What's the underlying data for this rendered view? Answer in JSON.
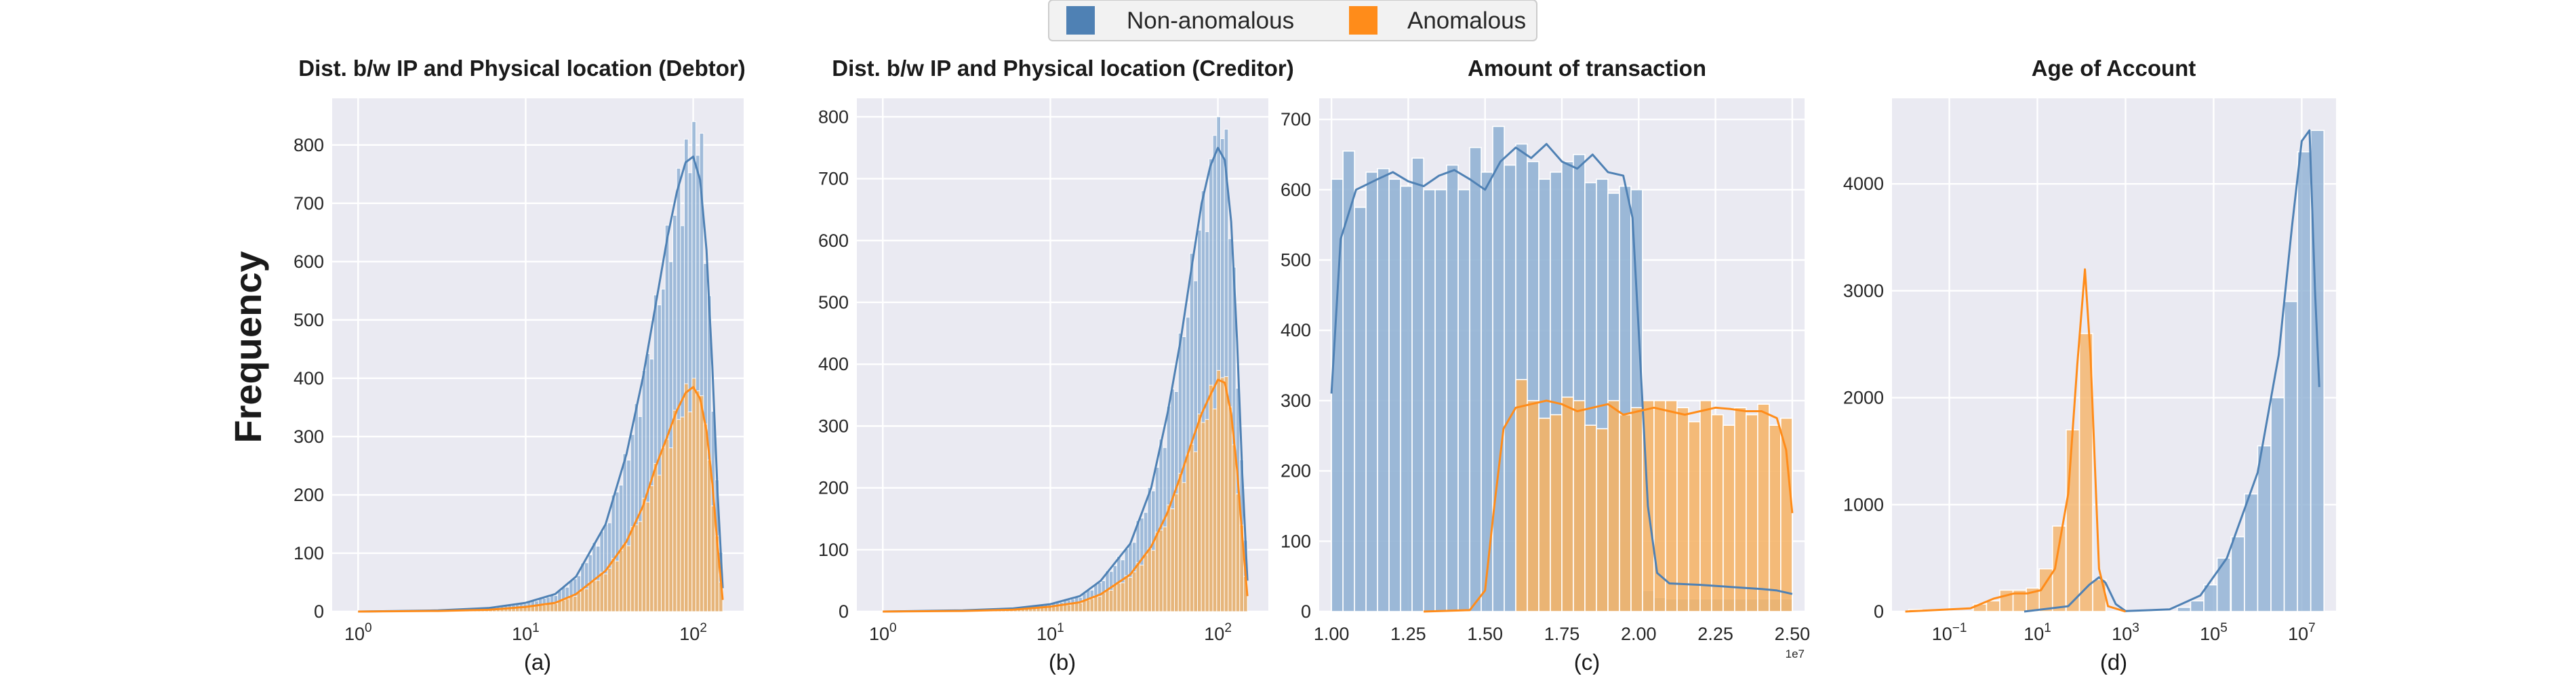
{
  "figure": {
    "ylabel": "Frequency",
    "legend": {
      "items": [
        {
          "label": "Non-anomalous",
          "color": "#4f81b4"
        },
        {
          "label": "Anomalous",
          "color": "#ff8c1a"
        }
      ]
    }
  },
  "chart_data": [
    {
      "type": "histogram",
      "title": "Dist. b/w IP and Physical location (Debtor)",
      "sublabel": "(a)",
      "xscale": "log",
      "xlim": [
        0.7,
        200
      ],
      "ylim": [
        0,
        880
      ],
      "yticks": [
        0,
        100,
        200,
        300,
        400,
        500,
        600,
        700,
        800
      ],
      "xticks": [
        {
          "value": 1,
          "base": "10",
          "exp": "0"
        },
        {
          "value": 10,
          "base": "10",
          "exp": "1"
        },
        {
          "value": 100,
          "base": "10",
          "exp": "2"
        }
      ],
      "grid": true,
      "series": [
        {
          "name": "Non-anomalous",
          "kde": [
            [
              1,
              0
            ],
            [
              3,
              2
            ],
            [
              6,
              6
            ],
            [
              10,
              15
            ],
            [
              15,
              30
            ],
            [
              20,
              60
            ],
            [
              30,
              150
            ],
            [
              40,
              270
            ],
            [
              50,
              400
            ],
            [
              60,
              530
            ],
            [
              70,
              640
            ],
            [
              80,
              720
            ],
            [
              90,
              770
            ],
            [
              100,
              780
            ],
            [
              110,
              740
            ],
            [
              120,
              620
            ],
            [
              130,
              420
            ],
            [
              140,
              200
            ],
            [
              150,
              40
            ]
          ],
          "peaks": [
            [
              100,
              840
            ],
            [
              90,
              810
            ],
            [
              110,
              820
            ],
            [
              80,
              760
            ]
          ]
        },
        {
          "name": "Anomalous",
          "kde": [
            [
              1,
              0
            ],
            [
              3,
              1
            ],
            [
              6,
              3
            ],
            [
              10,
              8
            ],
            [
              15,
              15
            ],
            [
              20,
              30
            ],
            [
              30,
              70
            ],
            [
              40,
              120
            ],
            [
              50,
              180
            ],
            [
              60,
              250
            ],
            [
              70,
              300
            ],
            [
              80,
              345
            ],
            [
              90,
              375
            ],
            [
              100,
              385
            ],
            [
              110,
              365
            ],
            [
              120,
              310
            ],
            [
              130,
              220
            ],
            [
              140,
              110
            ],
            [
              150,
              20
            ]
          ],
          "peaks": [
            [
              100,
              400
            ],
            [
              110,
              370
            ]
          ]
        }
      ]
    },
    {
      "type": "histogram",
      "title": "Dist. b/w IP and Physical location (Creditor)",
      "sublabel": "(b)",
      "xscale": "log",
      "xlim": [
        0.7,
        200
      ],
      "ylim": [
        0,
        830
      ],
      "yticks": [
        0,
        100,
        200,
        300,
        400,
        500,
        600,
        700,
        800
      ],
      "xticks": [
        {
          "value": 1,
          "base": "10",
          "exp": "0"
        },
        {
          "value": 10,
          "base": "10",
          "exp": "1"
        },
        {
          "value": 100,
          "base": "10",
          "exp": "2"
        }
      ],
      "grid": true,
      "series": [
        {
          "name": "Non-anomalous",
          "kde": [
            [
              1,
              0
            ],
            [
              3,
              2
            ],
            [
              6,
              5
            ],
            [
              10,
              12
            ],
            [
              15,
              25
            ],
            [
              20,
              50
            ],
            [
              30,
              110
            ],
            [
              40,
              200
            ],
            [
              50,
              320
            ],
            [
              60,
              440
            ],
            [
              70,
              560
            ],
            [
              80,
              660
            ],
            [
              90,
              720
            ],
            [
              100,
              750
            ],
            [
              110,
              730
            ],
            [
              120,
              630
            ],
            [
              130,
              440
            ],
            [
              140,
              220
            ],
            [
              150,
              50
            ]
          ],
          "peaks": [
            [
              100,
              800
            ],
            [
              110,
              780
            ],
            [
              95,
              770
            ]
          ]
        },
        {
          "name": "Anomalous",
          "kde": [
            [
              1,
              0
            ],
            [
              3,
              1
            ],
            [
              6,
              3
            ],
            [
              10,
              8
            ],
            [
              15,
              15
            ],
            [
              20,
              28
            ],
            [
              30,
              60
            ],
            [
              40,
              105
            ],
            [
              50,
              160
            ],
            [
              60,
              220
            ],
            [
              70,
              275
            ],
            [
              80,
              320
            ],
            [
              90,
              350
            ],
            [
              100,
              375
            ],
            [
              110,
              370
            ],
            [
              120,
              320
            ],
            [
              130,
              230
            ],
            [
              140,
              120
            ],
            [
              150,
              25
            ]
          ],
          "peaks": [
            [
              100,
              390
            ],
            [
              110,
              380
            ]
          ]
        }
      ]
    },
    {
      "type": "histogram",
      "title": "Amount of transaction",
      "sublabel": "(c)",
      "xscale": "linear",
      "xlim": [
        0.96,
        2.54
      ],
      "ylim": [
        0,
        730
      ],
      "offset_text": "1e7",
      "yticks": [
        0,
        100,
        200,
        300,
        400,
        500,
        600,
        700
      ],
      "xticks": [
        {
          "value": 1.0,
          "label": "1.00"
        },
        {
          "value": 1.25,
          "label": "1.25"
        },
        {
          "value": 1.5,
          "label": "1.50"
        },
        {
          "value": 1.75,
          "label": "1.75"
        },
        {
          "value": 2.0,
          "label": "2.00"
        },
        {
          "value": 2.25,
          "label": "2.25"
        },
        {
          "value": 2.5,
          "label": "2.50"
        }
      ],
      "grid": true,
      "bins_start": 1.0,
      "bin_width": 0.0375,
      "series": [
        {
          "name": "Non-anomalous",
          "values": [
            615,
            655,
            575,
            625,
            630,
            615,
            605,
            645,
            600,
            600,
            635,
            600,
            660,
            625,
            690,
            635,
            665,
            640,
            615,
            625,
            640,
            650,
            610,
            615,
            595,
            605,
            600,
            30,
            20,
            18,
            18,
            18,
            18,
            18,
            18,
            18,
            18,
            18,
            18,
            18
          ],
          "kde": [
            [
              1.0,
              310
            ],
            [
              1.03,
              530
            ],
            [
              1.08,
              600
            ],
            [
              1.15,
              615
            ],
            [
              1.2,
              625
            ],
            [
              1.25,
              612
            ],
            [
              1.3,
              605
            ],
            [
              1.35,
              620
            ],
            [
              1.4,
              628
            ],
            [
              1.45,
              615
            ],
            [
              1.5,
              600
            ],
            [
              1.55,
              640
            ],
            [
              1.6,
              660
            ],
            [
              1.65,
              645
            ],
            [
              1.7,
              665
            ],
            [
              1.75,
              640
            ],
            [
              1.8,
              630
            ],
            [
              1.85,
              650
            ],
            [
              1.9,
              625
            ],
            [
              1.95,
              620
            ],
            [
              1.98,
              560
            ],
            [
              2.0,
              400
            ],
            [
              2.03,
              150
            ],
            [
              2.06,
              55
            ],
            [
              2.1,
              40
            ],
            [
              2.2,
              38
            ],
            [
              2.3,
              35
            ],
            [
              2.4,
              32
            ],
            [
              2.45,
              30
            ],
            [
              2.5,
              25
            ]
          ]
        },
        {
          "name": "Anomalous",
          "values": [
            0,
            0,
            0,
            0,
            0,
            0,
            0,
            0,
            0,
            0,
            0,
            0,
            0,
            0,
            0,
            0,
            330,
            300,
            275,
            280,
            305,
            300,
            265,
            260,
            300,
            280,
            290,
            300,
            300,
            300,
            290,
            270,
            300,
            280,
            265,
            290,
            280,
            295,
            265,
            275
          ],
          "kde": [
            [
              1.3,
              0
            ],
            [
              1.45,
              2
            ],
            [
              1.5,
              30
            ],
            [
              1.53,
              150
            ],
            [
              1.56,
              260
            ],
            [
              1.6,
              290
            ],
            [
              1.65,
              295
            ],
            [
              1.7,
              300
            ],
            [
              1.75,
              295
            ],
            [
              1.8,
              285
            ],
            [
              1.85,
              290
            ],
            [
              1.9,
              295
            ],
            [
              1.95,
              280
            ],
            [
              2.0,
              285
            ],
            [
              2.05,
              290
            ],
            [
              2.1,
              285
            ],
            [
              2.15,
              280
            ],
            [
              2.2,
              285
            ],
            [
              2.25,
              290
            ],
            [
              2.3,
              288
            ],
            [
              2.35,
              285
            ],
            [
              2.4,
              285
            ],
            [
              2.45,
              275
            ],
            [
              2.48,
              230
            ],
            [
              2.5,
              140
            ]
          ]
        }
      ]
    },
    {
      "type": "histogram",
      "title": "Age of Account",
      "sublabel": "(d)",
      "xscale": "log",
      "xlim": [
        0.005,
        60000000
      ],
      "ylim": [
        0,
        4800
      ],
      "yticks": [
        0,
        1000,
        2000,
        3000,
        4000
      ],
      "xticks": [
        {
          "value": 0.1,
          "base": "10",
          "exp": "−1"
        },
        {
          "value": 10,
          "base": "10",
          "exp": "1"
        },
        {
          "value": 1000,
          "base": "10",
          "exp": "3"
        },
        {
          "value": 100000,
          "base": "10",
          "exp": "5"
        },
        {
          "value": 10000000,
          "base": "10",
          "exp": "7"
        }
      ],
      "grid": true,
      "series": [
        {
          "name": "Non-anomalous",
          "bars": [
            [
              15000,
              40
            ],
            [
              30000,
              100
            ],
            [
              60000,
              250
            ],
            [
              120000,
              500
            ],
            [
              250000,
              700
            ],
            [
              500000,
              1100
            ],
            [
              1000000,
              1550
            ],
            [
              2000000,
              2000
            ],
            [
              4000000,
              2900
            ],
            [
              8000000,
              4300
            ],
            [
              16000000,
              4500
            ]
          ],
          "kde": [
            [
              5,
              0
            ],
            [
              50,
              50
            ],
            [
              150,
              250
            ],
            [
              250,
              320
            ],
            [
              350,
              270
            ],
            [
              600,
              70
            ],
            [
              1000,
              5
            ],
            [
              10000,
              20
            ],
            [
              50000,
              150
            ],
            [
              200000,
              500
            ],
            [
              1000000,
              1300
            ],
            [
              3000000,
              2400
            ],
            [
              6000000,
              3600
            ],
            [
              10000000,
              4400
            ],
            [
              15000000,
              4500
            ],
            [
              20000000,
              3000
            ],
            [
              25000000,
              2100
            ]
          ]
        },
        {
          "name": "Anomalous",
          "bars": [
            [
              0.012,
              20
            ],
            [
              0.35,
              70
            ],
            [
              0.7,
              100
            ],
            [
              1.4,
              200
            ],
            [
              2.8,
              200
            ],
            [
              5.6,
              220
            ],
            [
              11,
              400
            ],
            [
              22,
              800
            ],
            [
              45,
              1700
            ],
            [
              90,
              2600
            ],
            [
              180,
              300
            ]
          ],
          "kde": [
            [
              0.01,
              0
            ],
            [
              0.3,
              30
            ],
            [
              1,
              120
            ],
            [
              3,
              170
            ],
            [
              6,
              170
            ],
            [
              12,
              200
            ],
            [
              25,
              400
            ],
            [
              50,
              1100
            ],
            [
              80,
              2300
            ],
            [
              120,
              3200
            ],
            [
              160,
              2400
            ],
            [
              250,
              400
            ],
            [
              400,
              50
            ],
            [
              1000,
              0
            ]
          ]
        }
      ]
    }
  ]
}
